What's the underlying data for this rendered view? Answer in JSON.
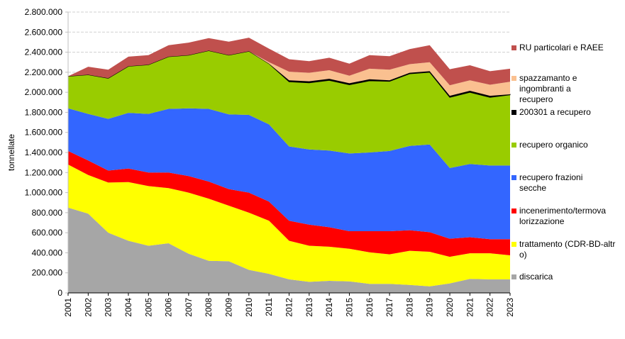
{
  "chart_data": {
    "type": "area",
    "stacked": true,
    "title": "",
    "xlabel": "",
    "ylabel": "tonnellate",
    "ylim": [
      0,
      2800000
    ],
    "ytick_step": 200000,
    "yticks": [
      "0",
      "200.000",
      "400.000",
      "600.000",
      "800.000",
      "1.000.000",
      "1.200.000",
      "1.400.000",
      "1.600.000",
      "1.800.000",
      "2.000.000",
      "2.200.000",
      "2.400.000",
      "2.600.000",
      "2.800.000"
    ],
    "grid": true,
    "legend_position": "right",
    "categories": [
      "2001",
      "2002",
      "2003",
      "2004",
      "2005",
      "2006",
      "2007",
      "2008",
      "2009",
      "2010",
      "2011",
      "2012",
      "2013",
      "2014",
      "2015",
      "2016",
      "2017",
      "2018",
      "2019",
      "2020",
      "2021",
      "2022",
      "2023"
    ],
    "series": [
      {
        "name": "discarica",
        "color": "#a6a6a6",
        "values": [
          850000,
          790000,
          600000,
          520000,
          470000,
          495000,
          390000,
          320000,
          315000,
          230000,
          190000,
          135000,
          110000,
          120000,
          115000,
          90000,
          90000,
          80000,
          65000,
          95000,
          140000,
          135000,
          135000
        ]
      },
      {
        "name": "trattamento (CDR-BD-altro)",
        "color": "#ffff00",
        "values": [
          430000,
          385000,
          500000,
          585000,
          595000,
          550000,
          610000,
          620000,
          555000,
          570000,
          530000,
          385000,
          360000,
          340000,
          325000,
          315000,
          295000,
          340000,
          345000,
          265000,
          255000,
          260000,
          240000
        ]
      },
      {
        "name": "incenerimento/termovalorizzazione",
        "label_lines": [
          "incenerimento/termova",
          "lorizzazione"
        ],
        "color": "#ff0000",
        "values": [
          135000,
          145000,
          120000,
          135000,
          135000,
          155000,
          165000,
          170000,
          165000,
          200000,
          190000,
          200000,
          210000,
          195000,
          175000,
          210000,
          230000,
          205000,
          195000,
          180000,
          160000,
          140000,
          160000
        ]
      },
      {
        "name": "recupero frazioni secche",
        "label_lines": [
          "recupero frazioni",
          "secche"
        ],
        "color": "#3366ff",
        "values": [
          425000,
          465000,
          515000,
          555000,
          585000,
          635000,
          675000,
          725000,
          745000,
          775000,
          770000,
          740000,
          750000,
          765000,
          775000,
          785000,
          800000,
          840000,
          875000,
          705000,
          730000,
          735000,
          735000
        ]
      },
      {
        "name": "recupero organico",
        "color": "#99cc00",
        "values": [
          320000,
          390000,
          405000,
          465000,
          490000,
          520000,
          530000,
          580000,
          590000,
          635000,
          605000,
          645000,
          665000,
          700000,
          685000,
          715000,
          695000,
          720000,
          720000,
          705000,
          715000,
          680000,
          705000
        ]
      },
      {
        "name": "200301 a recupero",
        "color": "#000000",
        "values": [
          0,
          0,
          0,
          0,
          0,
          0,
          0,
          0,
          0,
          0,
          0,
          15000,
          15000,
          15000,
          15000,
          15000,
          10000,
          10000,
          10000,
          15000,
          15000,
          15000,
          5000
        ]
      },
      {
        "name": "spazzamanto e ingombranti a recupero",
        "label_lines": [
          "spazzamanto e",
          "ingombranti a",
          "recupero"
        ],
        "color": "#fac090",
        "values": [
          0,
          0,
          0,
          0,
          0,
          0,
          0,
          0,
          0,
          0,
          15000,
          85000,
          85000,
          85000,
          75000,
          105000,
          105000,
          85000,
          90000,
          105000,
          105000,
          110000,
          125000
        ]
      },
      {
        "name": "RU particolari e RAEE",
        "color": "#c0504d",
        "values": [
          0,
          80000,
          85000,
          95000,
          95000,
          115000,
          125000,
          125000,
          135000,
          135000,
          135000,
          125000,
          115000,
          125000,
          120000,
          135000,
          135000,
          150000,
          170000,
          160000,
          150000,
          135000,
          130000
        ]
      }
    ]
  }
}
